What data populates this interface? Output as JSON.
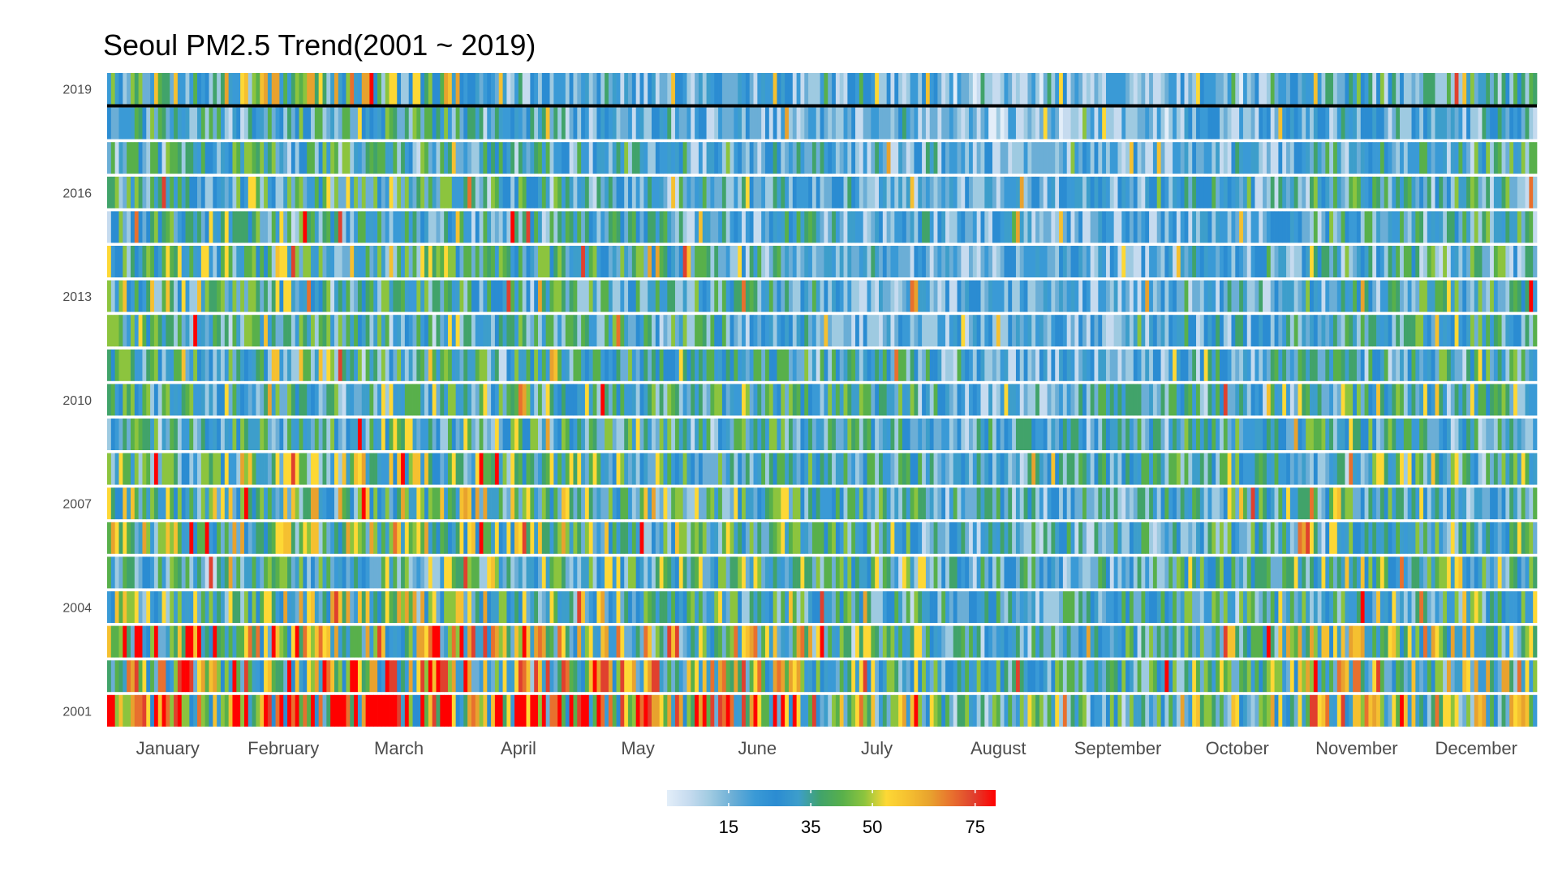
{
  "chart_data": {
    "type": "heatmap",
    "title": "Seoul PM2.5 Trend(2001 ~ 2019)",
    "xlabel": "",
    "ylabel": "",
    "years": [
      2001,
      2002,
      2003,
      2004,
      2005,
      2006,
      2007,
      2008,
      2009,
      2010,
      2011,
      2012,
      2013,
      2014,
      2015,
      2016,
      2017,
      2018,
      2019
    ],
    "y_tick_labels": [
      "2001",
      "2004",
      "2007",
      "2010",
      "2013",
      "2016",
      "2019"
    ],
    "x_tick_labels": [
      "January",
      "February",
      "March",
      "April",
      "May",
      "June",
      "July",
      "August",
      "September",
      "October",
      "November",
      "December"
    ],
    "value_unit": "daily PM2.5",
    "color_scale": {
      "breaks": [
        15,
        35,
        50,
        75
      ],
      "break_labels": [
        "15",
        "35",
        "50",
        "75"
      ],
      "range": [
        0,
        80
      ],
      "colors": [
        "#e3eef9",
        "#c6dbef",
        "#9ecae1",
        "#6baed6",
        "#3a9ad6",
        "#2b8cd2",
        "#3d9ecb",
        "#41a36a",
        "#58b04b",
        "#8cc43e",
        "#fdd835",
        "#f5c030",
        "#e8a22e",
        "#e8702e",
        "#e0402e",
        "#ff0000"
      ],
      "legend_position": "bottom"
    },
    "reference_line": {
      "year": 2019,
      "position": "below 2019 row",
      "color": "#000000"
    },
    "monthly_mean_by_year": {
      "2001": [
        52,
        56,
        60,
        52,
        50,
        55,
        36,
        30,
        30,
        36,
        44,
        40
      ],
      "2002": [
        46,
        52,
        50,
        46,
        44,
        42,
        32,
        28,
        28,
        32,
        42,
        38
      ],
      "2003": [
        50,
        48,
        46,
        42,
        44,
        40,
        32,
        28,
        28,
        34,
        40,
        40
      ],
      "2004": [
        36,
        38,
        38,
        36,
        36,
        34,
        28,
        26,
        26,
        30,
        34,
        32
      ],
      "2005": [
        30,
        32,
        32,
        34,
        32,
        34,
        30,
        26,
        26,
        30,
        36,
        34
      ],
      "2006": [
        38,
        36,
        38,
        36,
        34,
        32,
        28,
        24,
        26,
        30,
        32,
        32
      ],
      "2007": [
        36,
        38,
        40,
        38,
        36,
        34,
        30,
        24,
        26,
        32,
        34,
        32
      ],
      "2008": [
        32,
        34,
        36,
        34,
        32,
        30,
        28,
        24,
        26,
        30,
        30,
        30
      ],
      "2009": [
        28,
        30,
        32,
        32,
        30,
        28,
        26,
        24,
        26,
        28,
        30,
        28
      ],
      "2010": [
        30,
        30,
        32,
        30,
        30,
        30,
        28,
        22,
        24,
        26,
        32,
        30
      ],
      "2011": [
        30,
        34,
        30,
        30,
        28,
        28,
        26,
        20,
        20,
        24,
        28,
        28
      ],
      "2012": [
        30,
        28,
        30,
        28,
        28,
        26,
        22,
        20,
        20,
        24,
        28,
        30
      ],
      "2013": [
        34,
        32,
        32,
        28,
        28,
        26,
        22,
        20,
        20,
        22,
        26,
        30
      ],
      "2014": [
        32,
        34,
        34,
        32,
        28,
        26,
        22,
        20,
        20,
        22,
        26,
        28
      ],
      "2015": [
        30,
        30,
        32,
        28,
        26,
        26,
        22,
        20,
        20,
        22,
        26,
        28
      ],
      "2016": [
        30,
        32,
        30,
        28,
        26,
        26,
        22,
        20,
        20,
        24,
        28,
        28
      ],
      "2017": [
        28,
        30,
        30,
        26,
        24,
        24,
        22,
        16,
        18,
        22,
        26,
        28
      ],
      "2018": [
        26,
        28,
        30,
        24,
        22,
        20,
        16,
        14,
        14,
        18,
        22,
        22
      ],
      "2019": [
        36,
        38,
        40,
        24,
        22,
        20,
        18,
        14,
        16,
        16,
        24,
        28
      ]
    }
  }
}
